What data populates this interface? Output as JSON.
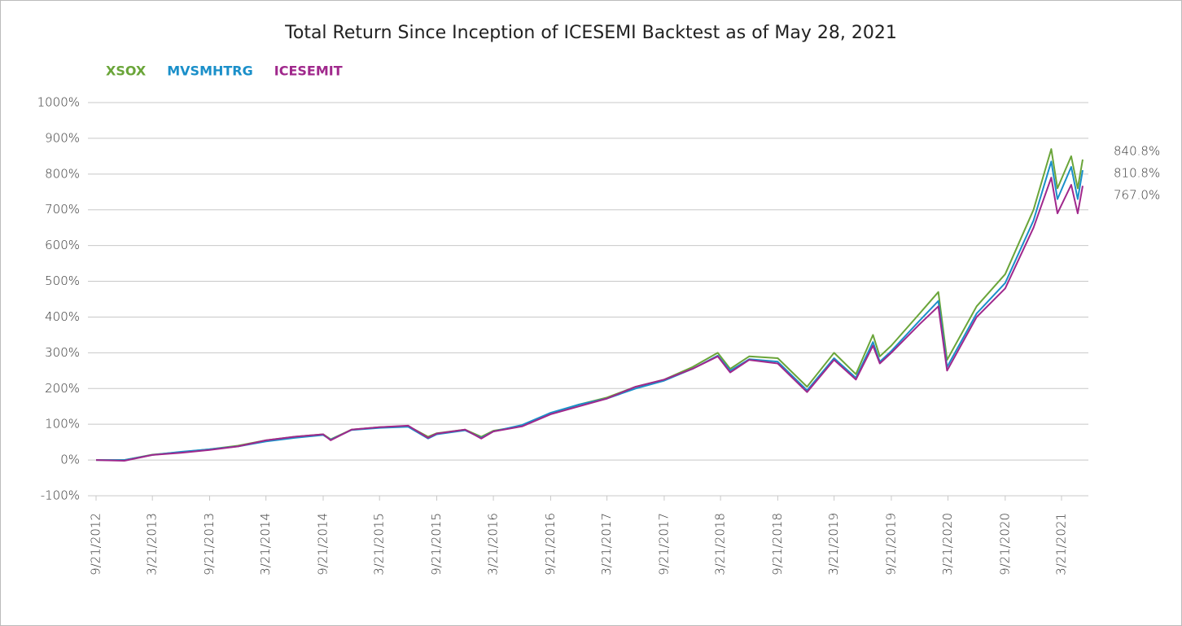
{
  "chart_data": {
    "type": "line",
    "title": "Total Return Since Inception of ICESEMI Backtest as of May 28, 2021",
    "x": [
      "9/21/2012",
      "12/21/2012",
      "3/21/2013",
      "6/21/2013",
      "9/21/2013",
      "12/21/2013",
      "3/21/2014",
      "6/21/2014",
      "9/21/2014",
      "10/15/2014",
      "12/21/2014",
      "3/21/2015",
      "6/21/2015",
      "8/24/2015",
      "9/21/2015",
      "12/21/2015",
      "2/11/2016",
      "3/21/2016",
      "6/21/2016",
      "9/21/2016",
      "12/21/2016",
      "3/21/2017",
      "6/21/2017",
      "9/21/2017",
      "12/21/2017",
      "3/12/2018",
      "4/21/2018",
      "6/21/2018",
      "9/21/2018",
      "12/24/2018",
      "3/21/2019",
      "5/30/2019",
      "7/24/2019",
      "8/15/2019",
      "9/21/2019",
      "12/21/2019",
      "2/19/2020",
      "3/18/2020",
      "6/21/2020",
      "9/21/2020",
      "12/21/2020",
      "2/16/2021",
      "3/8/2021",
      "4/21/2021",
      "5/12/2021",
      "5/28/2021"
    ],
    "series": [
      {
        "name": "XSOX",
        "color": "#6aa539",
        "end_label": "840.8%",
        "values": [
          0,
          0,
          15,
          22,
          30,
          40,
          55,
          65,
          72,
          58,
          85,
          92,
          95,
          65,
          75,
          85,
          65,
          82,
          95,
          130,
          155,
          175,
          205,
          225,
          260,
          300,
          255,
          290,
          285,
          205,
          300,
          240,
          350,
          290,
          320,
          410,
          470,
          280,
          430,
          520,
          700,
          870,
          760,
          850,
          760,
          840.8
        ]
      },
      {
        "name": "MVSMHTRG",
        "color": "#1a8fc9",
        "end_label": "810.8%",
        "values": [
          0,
          0,
          14,
          23,
          30,
          38,
          52,
          62,
          70,
          57,
          84,
          90,
          93,
          60,
          72,
          83,
          62,
          80,
          98,
          132,
          155,
          172,
          200,
          222,
          255,
          292,
          250,
          282,
          275,
          195,
          285,
          230,
          330,
          275,
          305,
          390,
          445,
          260,
          410,
          495,
          670,
          835,
          730,
          820,
          730,
          810.8
        ]
      },
      {
        "name": "ICESEMIT",
        "color": "#a0288c",
        "end_label": "767.0%",
        "values": [
          0,
          -2,
          14,
          20,
          28,
          38,
          55,
          65,
          72,
          55,
          85,
          92,
          96,
          62,
          74,
          85,
          60,
          80,
          94,
          128,
          150,
          172,
          205,
          225,
          255,
          290,
          245,
          280,
          270,
          190,
          280,
          225,
          320,
          270,
          300,
          380,
          430,
          250,
          400,
          480,
          650,
          790,
          690,
          770,
          690,
          767.0
        ]
      }
    ],
    "xlim": [
      "9/21/2012",
      "5/28/2021"
    ],
    "xticks": [
      "9/21/2012",
      "3/21/2013",
      "9/21/2013",
      "3/21/2014",
      "9/21/2014",
      "3/21/2015",
      "9/21/2015",
      "3/21/2016",
      "9/21/2016",
      "3/21/2017",
      "9/21/2017",
      "3/21/2018",
      "9/21/2018",
      "3/21/2019",
      "9/21/2019",
      "3/21/2020",
      "9/21/2020",
      "3/21/2021"
    ],
    "ylim": [
      -100,
      1000
    ],
    "yticks": [
      {
        "value": -100,
        "label": "-100%"
      },
      {
        "value": 0,
        "label": "0%"
      },
      {
        "value": 100,
        "label": "100%"
      },
      {
        "value": 200,
        "label": "200%"
      },
      {
        "value": 300,
        "label": "300%"
      },
      {
        "value": 400,
        "label": "400%"
      },
      {
        "value": 500,
        "label": "500%"
      },
      {
        "value": 600,
        "label": "600%"
      },
      {
        "value": 700,
        "label": "700%"
      },
      {
        "value": 800,
        "label": "800%"
      },
      {
        "value": 900,
        "label": "900%"
      },
      {
        "value": 1000,
        "label": "1000%"
      }
    ],
    "grid": true
  }
}
